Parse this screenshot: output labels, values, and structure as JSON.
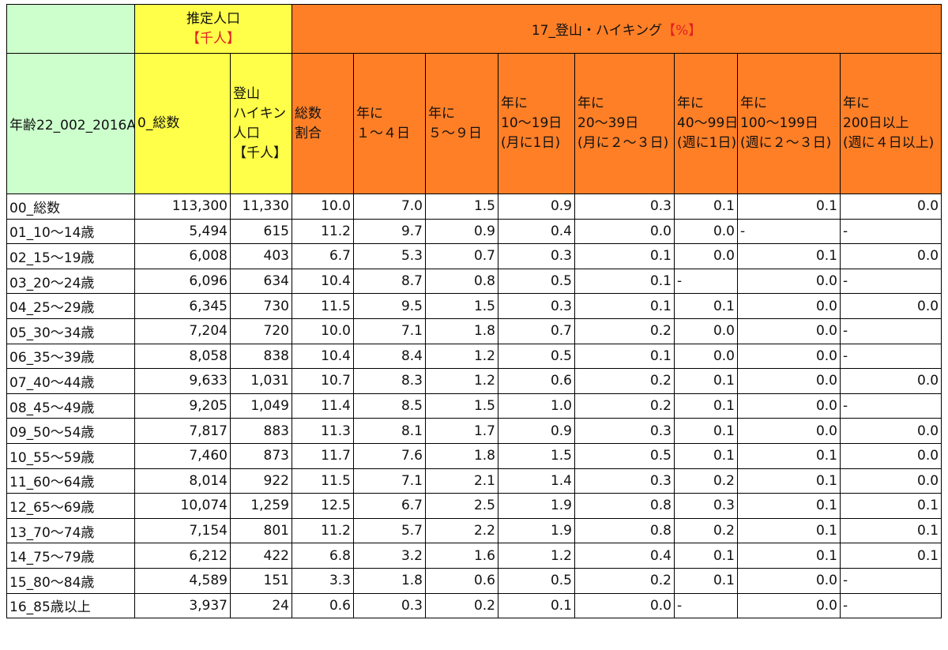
{
  "header": {
    "pop_title": "推定人口",
    "pop_unit": "【千人】",
    "activity_title": "17_登山・ハイキング",
    "activity_unit": "【%】",
    "age_label": "年齢22_002_2016A",
    "total_label": "0_総数",
    "hiking_pop_lines": [
      "登山",
      "ハイキン",
      "人口",
      "【千人】"
    ],
    "col_total_ratio": [
      "総数",
      "割合"
    ],
    "col_1_4": [
      "年に",
      "１～４日"
    ],
    "col_5_9": [
      "年に",
      "５～９日"
    ],
    "col_10_19": [
      "年に",
      "10～19日",
      "(月に1日)"
    ],
    "col_20_39": [
      "年に",
      "20～39日",
      "(月に２～３日)"
    ],
    "col_40_99": [
      "年に",
      "40～99日",
      "(週に1日)"
    ],
    "col_100_199": [
      "年に",
      "100～199日",
      "(週に２～３日)"
    ],
    "col_200": [
      "年に",
      "200日以上",
      "(週に４日以上)"
    ]
  },
  "rows": [
    {
      "age": "00_総数",
      "total": "113,300",
      "hpop": "11,330",
      "ratio": "10.0",
      "c1": "7.0",
      "c2": "1.5",
      "c3": "0.9",
      "c4": "0.3",
      "c5": "0.1",
      "c6": "0.1",
      "c7": "0.0"
    },
    {
      "age": "01_10～14歳",
      "total": "5,494",
      "hpop": "615",
      "ratio": "11.2",
      "c1": "9.7",
      "c2": "0.9",
      "c3": "0.4",
      "c4": "0.0",
      "c5": "0.0",
      "c6": "-",
      "c7": "-"
    },
    {
      "age": "02_15～19歳",
      "total": "6,008",
      "hpop": "403",
      "ratio": "6.7",
      "c1": "5.3",
      "c2": "0.7",
      "c3": "0.3",
      "c4": "0.1",
      "c5": "0.0",
      "c6": "0.1",
      "c7": "0.0"
    },
    {
      "age": "03_20～24歳",
      "total": "6,096",
      "hpop": "634",
      "ratio": "10.4",
      "c1": "8.7",
      "c2": "0.8",
      "c3": "0.5",
      "c4": "0.1",
      "c5": "-",
      "c6": "0.0",
      "c7": "-"
    },
    {
      "age": "04_25～29歳",
      "total": "6,345",
      "hpop": "730",
      "ratio": "11.5",
      "c1": "9.5",
      "c2": "1.5",
      "c3": "0.3",
      "c4": "0.1",
      "c5": "0.1",
      "c6": "0.0",
      "c7": "0.0"
    },
    {
      "age": "05_30～34歳",
      "total": "7,204",
      "hpop": "720",
      "ratio": "10.0",
      "c1": "7.1",
      "c2": "1.8",
      "c3": "0.7",
      "c4": "0.2",
      "c5": "0.0",
      "c6": "0.0",
      "c7": "-"
    },
    {
      "age": "06_35～39歳",
      "total": "8,058",
      "hpop": "838",
      "ratio": "10.4",
      "c1": "8.4",
      "c2": "1.2",
      "c3": "0.5",
      "c4": "0.1",
      "c5": "0.0",
      "c6": "0.0",
      "c7": "-"
    },
    {
      "age": "07_40～44歳",
      "total": "9,633",
      "hpop": "1,031",
      "ratio": "10.7",
      "c1": "8.3",
      "c2": "1.2",
      "c3": "0.6",
      "c4": "0.2",
      "c5": "0.1",
      "c6": "0.0",
      "c7": "0.0"
    },
    {
      "age": "08_45～49歳",
      "total": "9,205",
      "hpop": "1,049",
      "ratio": "11.4",
      "c1": "8.5",
      "c2": "1.5",
      "c3": "1.0",
      "c4": "0.2",
      "c5": "0.1",
      "c6": "0.0",
      "c7": "-"
    },
    {
      "age": "09_50～54歳",
      "total": "7,817",
      "hpop": "883",
      "ratio": "11.3",
      "c1": "8.1",
      "c2": "1.7",
      "c3": "0.9",
      "c4": "0.3",
      "c5": "0.1",
      "c6": "0.0",
      "c7": "0.0"
    },
    {
      "age": "10_55～59歳",
      "total": "7,460",
      "hpop": "873",
      "ratio": "11.7",
      "c1": "7.6",
      "c2": "1.8",
      "c3": "1.5",
      "c4": "0.5",
      "c5": "0.1",
      "c6": "0.1",
      "c7": "0.0"
    },
    {
      "age": "11_60～64歳",
      "total": "8,014",
      "hpop": "922",
      "ratio": "11.5",
      "c1": "7.1",
      "c2": "2.1",
      "c3": "1.4",
      "c4": "0.3",
      "c5": "0.2",
      "c6": "0.1",
      "c7": "0.0"
    },
    {
      "age": "12_65～69歳",
      "total": "10,074",
      "hpop": "1,259",
      "ratio": "12.5",
      "c1": "6.7",
      "c2": "2.5",
      "c3": "1.9",
      "c4": "0.8",
      "c5": "0.3",
      "c6": "0.1",
      "c7": "0.1"
    },
    {
      "age": "13_70～74歳",
      "total": "7,154",
      "hpop": "801",
      "ratio": "11.2",
      "c1": "5.7",
      "c2": "2.2",
      "c3": "1.9",
      "c4": "0.8",
      "c5": "0.2",
      "c6": "0.1",
      "c7": "0.1"
    },
    {
      "age": "14_75～79歳",
      "total": "6,212",
      "hpop": "422",
      "ratio": "6.8",
      "c1": "3.2",
      "c2": "1.6",
      "c3": "1.2",
      "c4": "0.4",
      "c5": "0.1",
      "c6": "0.1",
      "c7": "0.1"
    },
    {
      "age": "15_80～84歳",
      "total": "4,589",
      "hpop": "151",
      "ratio": "3.3",
      "c1": "1.8",
      "c2": "0.6",
      "c3": "0.5",
      "c4": "0.2",
      "c5": "0.1",
      "c6": "0.0",
      "c7": "-"
    },
    {
      "age": "16_85歳以上",
      "total": "3,937",
      "hpop": "24",
      "ratio": "0.6",
      "c1": "0.3",
      "c2": "0.2",
      "c3": "0.1",
      "c4": "0.0",
      "c5": "-",
      "c6": "0.0",
      "c7": "-"
    }
  ]
}
